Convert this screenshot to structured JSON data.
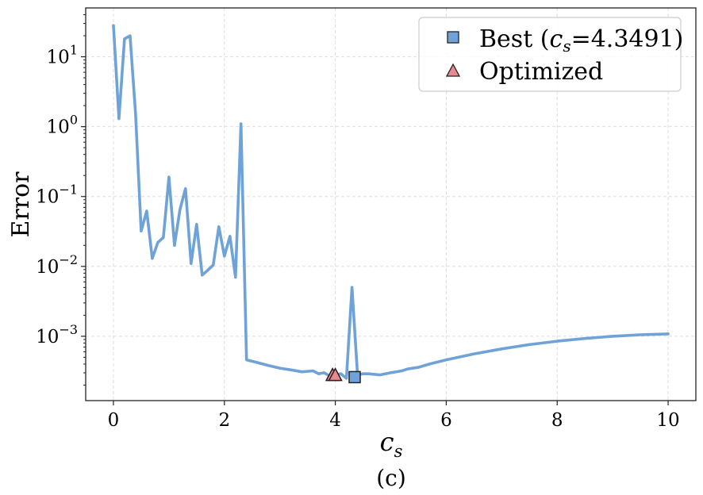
{
  "chart_data": {
    "type": "line",
    "xlabel": "c",
    "xlabel_subscript": "s",
    "ylabel": "Error",
    "panel_label": "(c)",
    "y_scale": "log",
    "xlim": [
      -0.5,
      10.5
    ],
    "ylim": [
      0.00012,
      50
    ],
    "grid": true,
    "legend_position": "top-right",
    "x_ticks": [
      0,
      2,
      4,
      6,
      8,
      10
    ],
    "x_tick_labels": [
      "0",
      "2",
      "4",
      "6",
      "8",
      "10"
    ],
    "y_ticks": [
      {
        "value": 0.001,
        "base": "10",
        "exp": "−3"
      },
      {
        "value": 0.01,
        "base": "10",
        "exp": "−2"
      },
      {
        "value": 0.1,
        "base": "10",
        "exp": "−1"
      },
      {
        "value": 1,
        "base": "10",
        "exp": "0"
      },
      {
        "value": 10,
        "base": "10",
        "exp": "1"
      }
    ],
    "series": [
      {
        "color": "#6fa3d8",
        "x": [
          0.0,
          0.1,
          0.2,
          0.3,
          0.4,
          0.5,
          0.6,
          0.7,
          0.8,
          0.9,
          1.0,
          1.1,
          1.2,
          1.3,
          1.4,
          1.5,
          1.6,
          1.7,
          1.8,
          1.9,
          2.0,
          2.1,
          2.2,
          2.3,
          2.4,
          2.6,
          2.8,
          3.0,
          3.2,
          3.4,
          3.6,
          3.7,
          3.8,
          3.9,
          4.0,
          4.1,
          4.2,
          4.3,
          4.4,
          4.5,
          4.6,
          4.8,
          5.0,
          5.2,
          5.3,
          5.5,
          5.7,
          6.0,
          6.5,
          7.0,
          7.5,
          8.0,
          8.5,
          9.0,
          9.5,
          10.0
        ],
        "y": [
          28,
          1.3,
          18,
          20,
          1.5,
          0.032,
          0.062,
          0.013,
          0.022,
          0.026,
          0.19,
          0.02,
          0.065,
          0.13,
          0.011,
          0.04,
          0.0075,
          0.0088,
          0.0105,
          0.037,
          0.014,
          0.027,
          0.007,
          1.1,
          0.00046,
          0.00042,
          0.00038,
          0.00035,
          0.00033,
          0.00031,
          0.00032,
          0.00029,
          0.0003,
          0.00027,
          0.00028,
          0.00029,
          0.00025,
          0.005,
          0.00028,
          0.00029,
          0.00029,
          0.00028,
          0.0003,
          0.00032,
          0.00034,
          0.00036,
          0.0004,
          0.00046,
          0.00056,
          0.00066,
          0.00076,
          0.00085,
          0.00093,
          0.001,
          0.00105,
          0.00108
        ]
      }
    ],
    "markers": [
      {
        "name": "Best (c_s=4.3491)",
        "legend_label": "Best (",
        "legend_var": "c",
        "legend_sub": "s",
        "legend_rest": "=4.3491)",
        "shape": "square",
        "color": "#6fa3d8",
        "points": [
          {
            "x": 4.3491,
            "y": 0.00026
          }
        ]
      },
      {
        "name": "Optimized",
        "legend_label": "Optimized",
        "shape": "triangle",
        "color": "#e8888f",
        "points": [
          {
            "x": 3.95,
            "y": 0.00028
          },
          {
            "x": 4.0,
            "y": 0.00028
          }
        ]
      }
    ]
  }
}
